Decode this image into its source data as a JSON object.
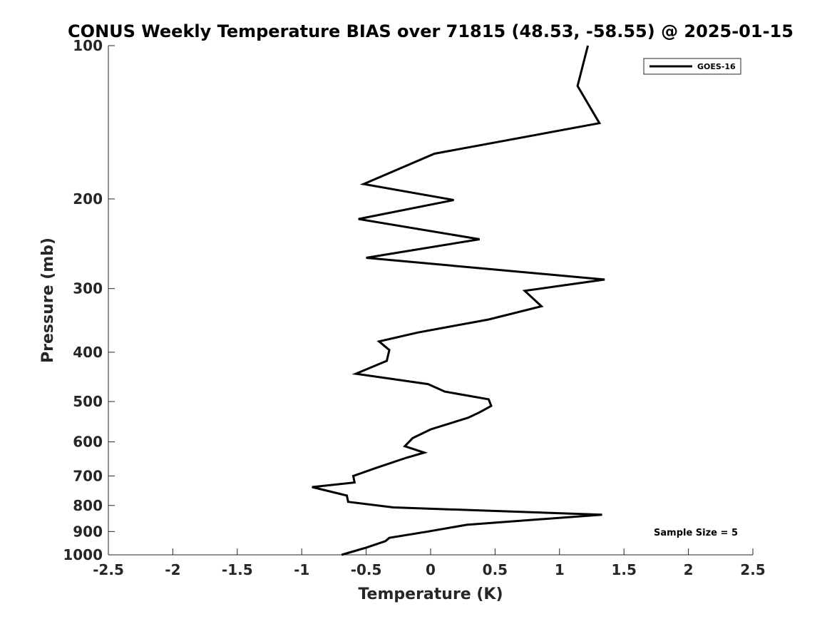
{
  "chart_data": {
    "type": "line",
    "title": "CONUS Weekly Temperature BIAS over 71815 (48.53, -58.55) @ 2025-01-15",
    "xlabel": "Temperature (K)",
    "ylabel": "Pressure (mb)",
    "xlim": [
      -2.5,
      2.5
    ],
    "ylim": [
      1000,
      100
    ],
    "y_scale": "log",
    "x_ticks": [
      -2.5,
      -2,
      -1.5,
      -1,
      -0.5,
      0,
      0.5,
      1,
      1.5,
      2,
      2.5
    ],
    "x_tick_labels": [
      "-2.5",
      "-2",
      "-1.5",
      "-1",
      "-0.5",
      "0",
      "0.5",
      "1",
      "1.5",
      "2",
      "2.5"
    ],
    "y_ticks": [
      100,
      200,
      300,
      400,
      500,
      600,
      700,
      800,
      900,
      1000
    ],
    "y_tick_labels": [
      "100",
      "200",
      "300",
      "400",
      "500",
      "600",
      "700",
      "800",
      "900",
      "1000"
    ],
    "legend_position": "top-right",
    "grid": false,
    "annotation": "Sample Size = 5",
    "series": [
      {
        "name": "GOES-16",
        "color": "#000000",
        "points": [
          [
            1.22,
            100
          ],
          [
            1.14,
            120
          ],
          [
            1.31,
            142
          ],
          [
            0.03,
            163
          ],
          [
            -0.52,
            187
          ],
          [
            0.18,
            201
          ],
          [
            -0.56,
            219
          ],
          [
            0.38,
            240
          ],
          [
            -0.5,
            261
          ],
          [
            1.35,
            288
          ],
          [
            0.73,
            303
          ],
          [
            0.86,
            325
          ],
          [
            0.45,
            345
          ],
          [
            -0.1,
            366
          ],
          [
            -0.4,
            381
          ],
          [
            -0.32,
            396
          ],
          [
            -0.34,
            416
          ],
          [
            -0.58,
            441
          ],
          [
            -0.02,
            462
          ],
          [
            0.11,
            478
          ],
          [
            0.45,
            495
          ],
          [
            0.47,
            510
          ],
          [
            0.38,
            525
          ],
          [
            0.29,
            538
          ],
          [
            0.0,
            567
          ],
          [
            -0.14,
            590
          ],
          [
            -0.2,
            612
          ],
          [
            -0.05,
            630
          ],
          [
            -0.19,
            645
          ],
          [
            -0.43,
            676
          ],
          [
            -0.6,
            700
          ],
          [
            -0.59,
            721
          ],
          [
            -0.92,
            736
          ],
          [
            -0.65,
            765
          ],
          [
            -0.64,
            787
          ],
          [
            -0.29,
            807
          ],
          [
            1.33,
            834
          ],
          [
            0.28,
            873
          ],
          [
            -0.02,
            900
          ],
          [
            -0.32,
            926
          ],
          [
            -0.35,
            940
          ],
          [
            -0.5,
            968
          ],
          [
            -0.69,
            1000
          ]
        ]
      }
    ]
  }
}
